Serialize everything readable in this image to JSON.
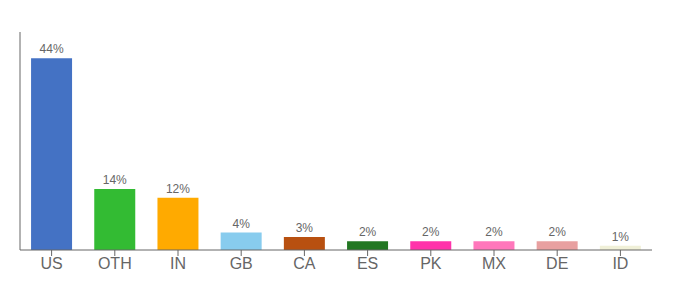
{
  "chart_data": {
    "type": "bar",
    "categories": [
      "US",
      "OTH",
      "IN",
      "GB",
      "CA",
      "ES",
      "PK",
      "MX",
      "DE",
      "ID"
    ],
    "values": [
      44,
      14,
      12,
      4,
      3,
      2,
      2,
      2,
      2,
      1
    ],
    "value_labels": [
      "44%",
      "14%",
      "12%",
      "4%",
      "3%",
      "2%",
      "2%",
      "2%",
      "2%",
      "1%"
    ],
    "colors": [
      "#4472c4",
      "#33bb33",
      "#ffaa00",
      "#88ccee",
      "#b85010",
      "#227722",
      "#ff33aa",
      "#ff77bb",
      "#e8a0a0",
      "#f0f0d8"
    ],
    "ylim": [
      0,
      50
    ],
    "data_labels": true,
    "tick_labels": "x",
    "grid": false
  }
}
